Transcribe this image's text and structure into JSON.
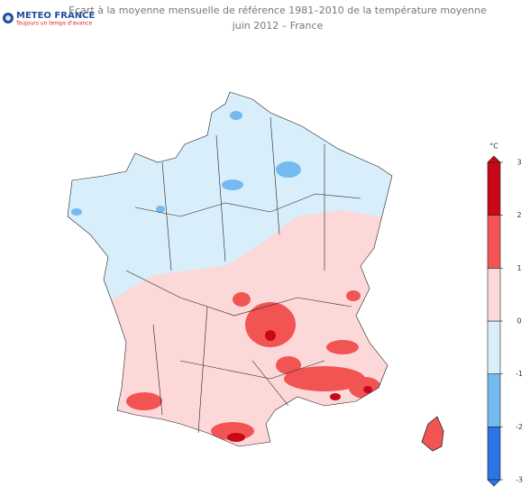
{
  "logo": {
    "name": "METEO FRANCE",
    "slogan": "Toujours un temps d'avance"
  },
  "title": [
    "Ecart à la moyenne mensuelle de référence 1981–2010 de la température moyenne",
    "juin 2012 – France"
  ],
  "legend": {
    "unit": "°C",
    "ticks": [
      -3,
      -2,
      -1,
      0,
      1,
      2,
      3
    ],
    "colors": [
      "#2a74e6",
      "#74b9ef",
      "#d8eefa",
      "#fcd8d8",
      "#f25454",
      "#c80818"
    ]
  }
}
